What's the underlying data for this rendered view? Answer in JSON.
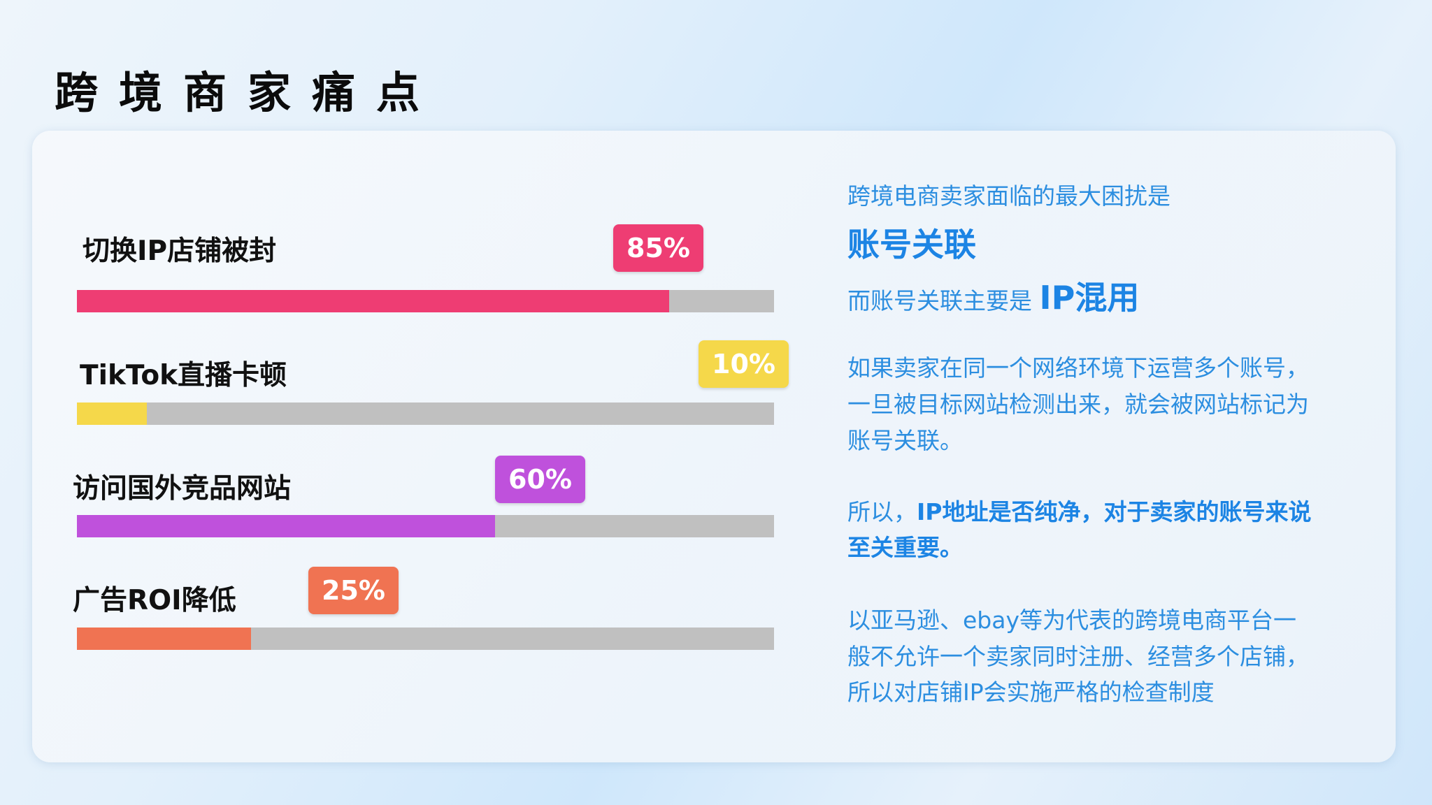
{
  "title": "跨境商家痛点",
  "chart_data": {
    "type": "bar",
    "orientation": "horizontal",
    "categories": [
      "切换IP店铺被封",
      "TikTok直播卡顿",
      "访问国外竞品网站",
      "广告ROI降低"
    ],
    "values": [
      85,
      10,
      60,
      25
    ],
    "labels": [
      "85%",
      "10%",
      "60%",
      "25%"
    ],
    "unit": "%",
    "xlim": [
      0,
      100
    ],
    "colors": [
      "#ee3d73",
      "#f5d84a",
      "#bf51dc",
      "#f07352"
    ],
    "track_color": "#c0c0c0",
    "grid": false
  },
  "right": {
    "line1": "跨境电商卖家面临的最大困扰是",
    "highlight1": "账号关联",
    "line3_prefix": "而账号关联主要是 ",
    "line3_bold": "IP混用",
    "para1": [
      "如果卖家在同一个网络环境下运营多个账号，",
      "一旦被目标网站检测出来，就会被网站标记为",
      "账号关联。"
    ],
    "para2_prefix": "所以，",
    "para2_bold_line1": "IP地址是否纯净，对于卖家的账号来说",
    "para2_bold_line2": "至关重要。",
    "para3": [
      "以亚马逊、ebay等为代表的跨境电商平台一",
      "般不允许一个卖家同时注册、经营多个店铺，",
      "所以对店铺IP会实施严格的检查制度"
    ]
  }
}
